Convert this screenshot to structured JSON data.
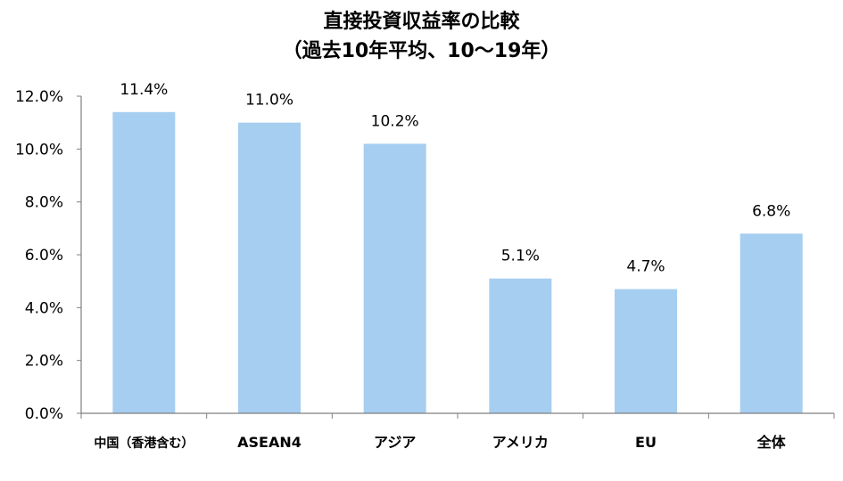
{
  "chart_data": {
    "type": "bar",
    "title": "直接投資収益率の比較",
    "subtitle": "（過去10年平均、10～19年）",
    "xlabel": "",
    "ylabel": "",
    "categories": [
      "中国（香港含む）",
      "ASEAN4",
      "アジア",
      "アメリカ",
      "EU",
      "全体"
    ],
    "values": [
      11.4,
      11.0,
      10.2,
      5.1,
      4.7,
      6.8
    ],
    "data_labels": [
      "11.4%",
      "11.0%",
      "10.2%",
      "5.1%",
      "4.7%",
      "6.8%"
    ],
    "y_ticks": [
      "0.0%",
      "2.0%",
      "4.0%",
      "6.0%",
      "8.0%",
      "10.0%",
      "12.0%"
    ],
    "ylim": [
      0,
      12
    ],
    "grid": false,
    "legend": "none",
    "bar_color": "#a6cef0",
    "axis_color": "#808080"
  }
}
